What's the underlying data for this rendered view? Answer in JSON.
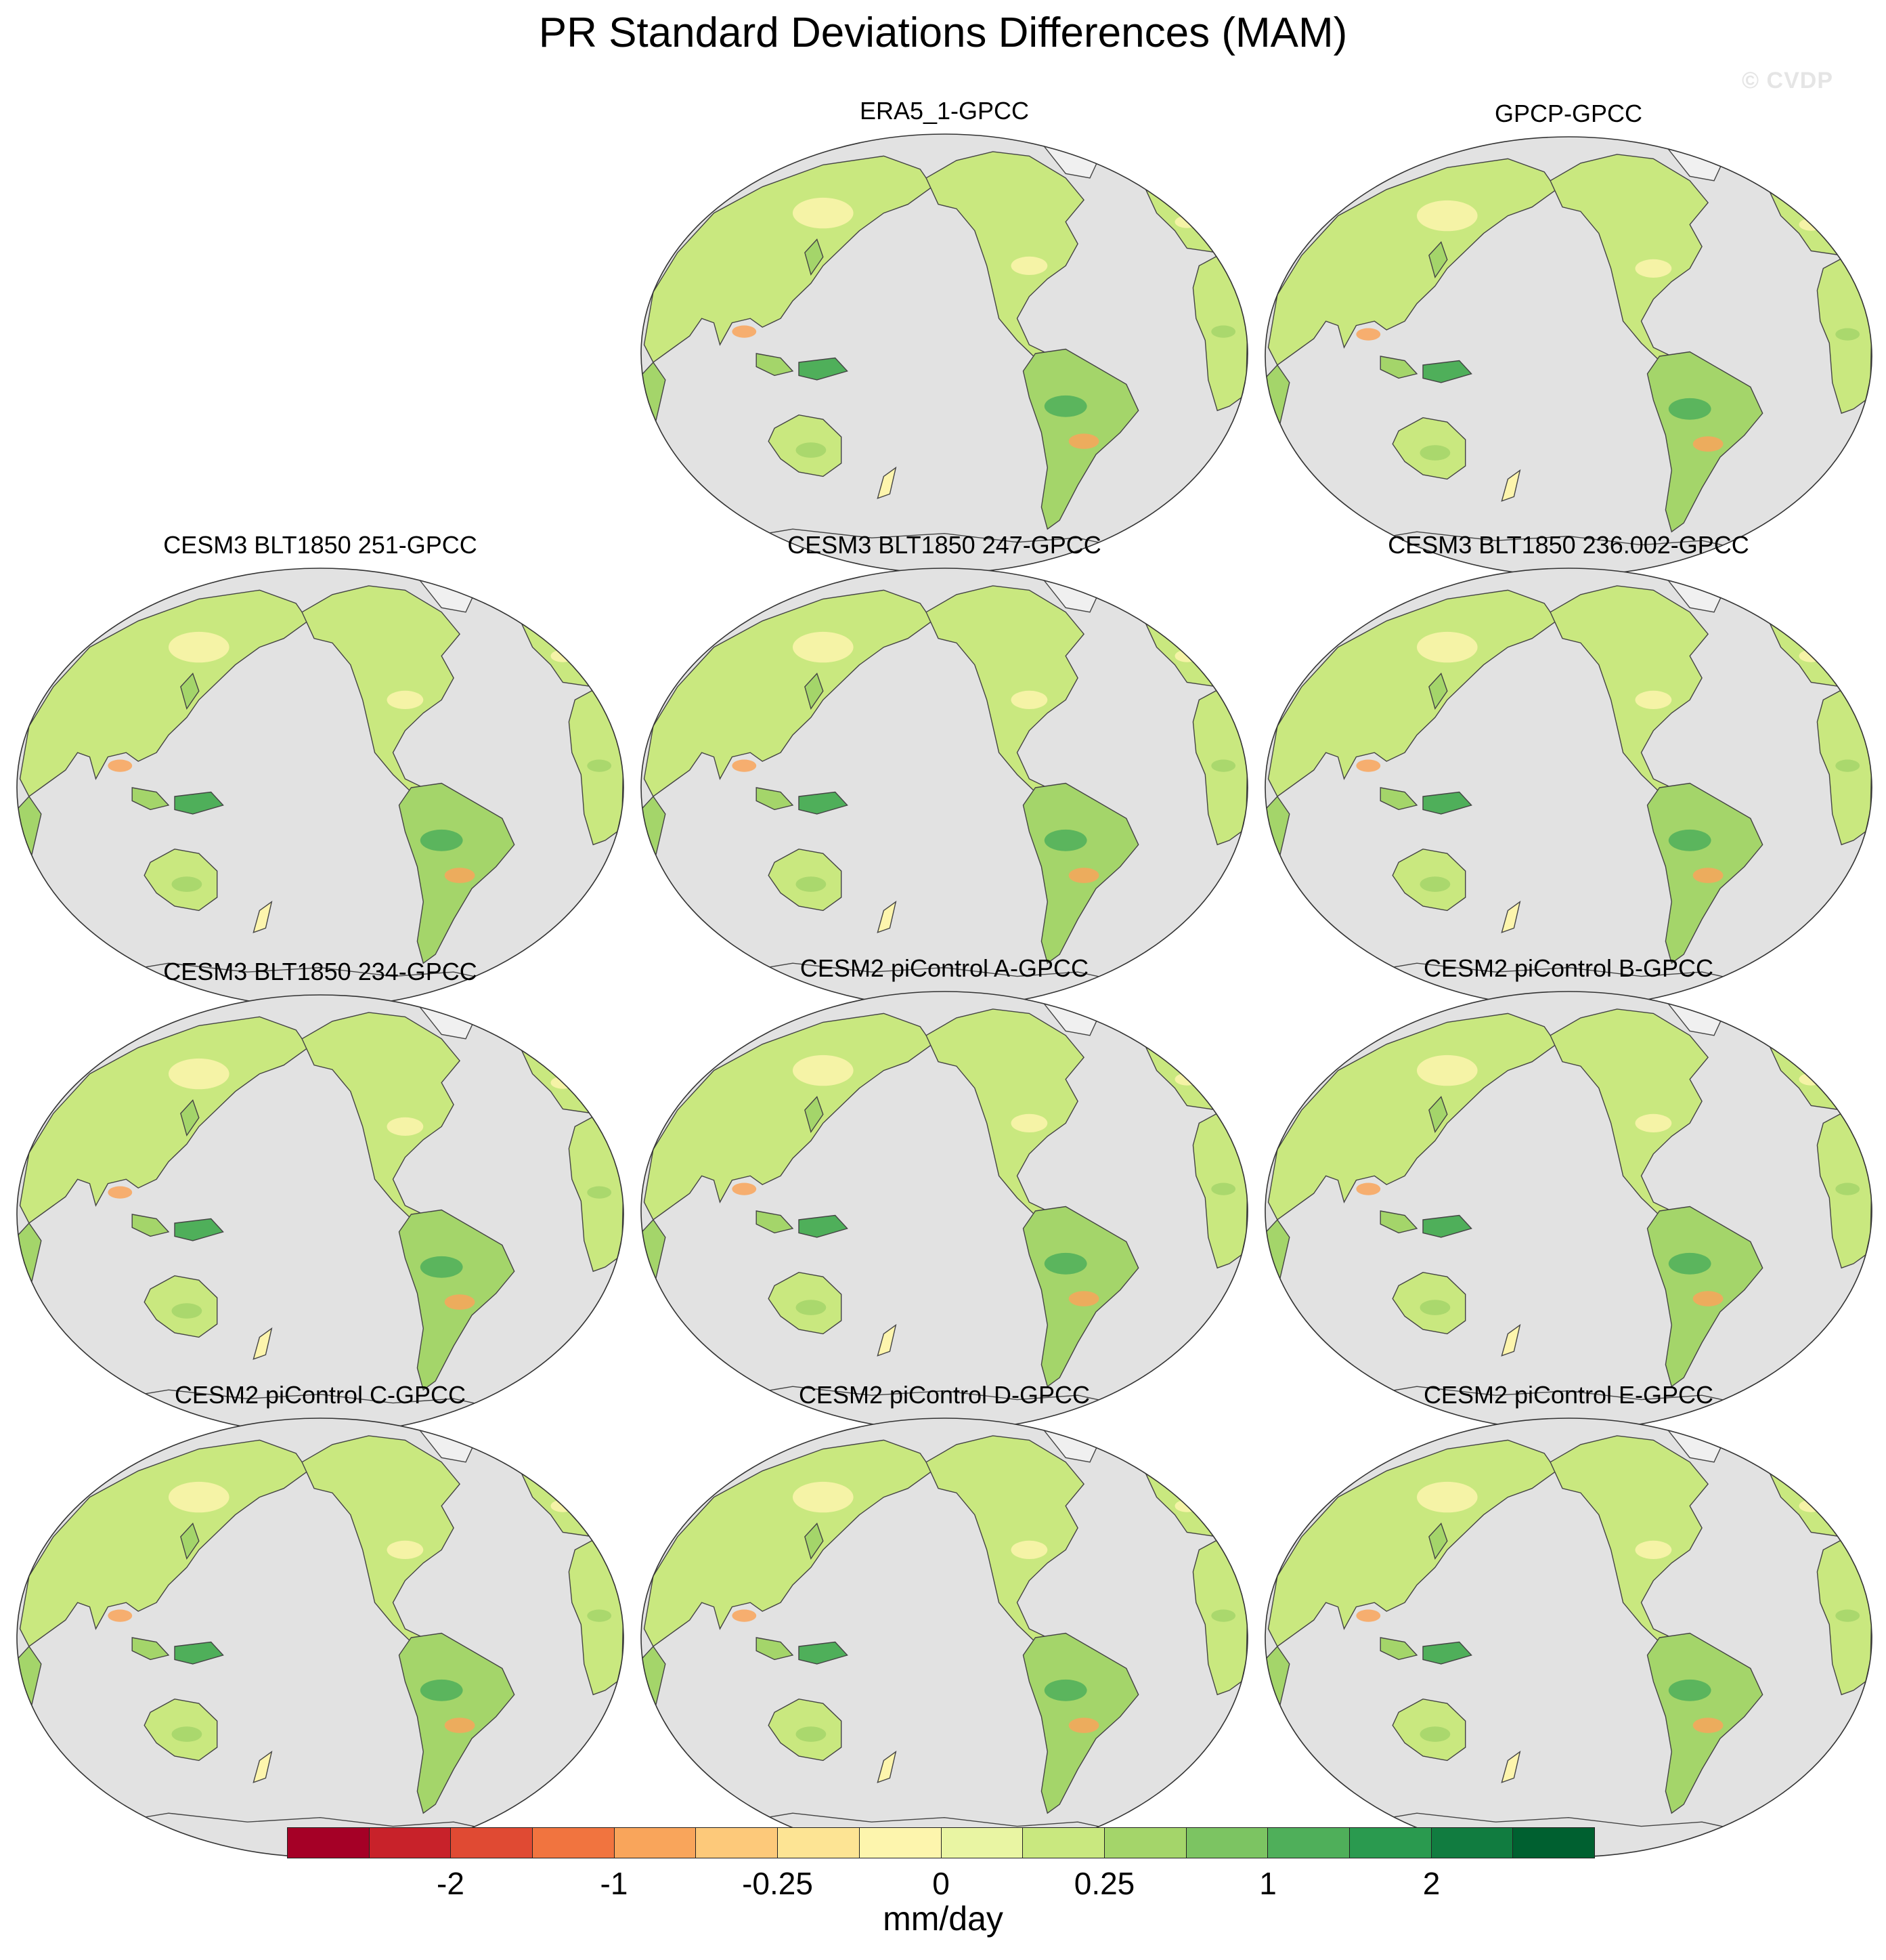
{
  "title": "PR Standard Deviations Differences (MAM)",
  "watermark": "© CVDP",
  "panels": [
    {
      "title": "ERA5_1-GPCC"
    },
    {
      "title": "GPCP-GPCC"
    },
    {
      "title": "CESM3 BLT1850 251-GPCC"
    },
    {
      "title": "CESM3 BLT1850 247-GPCC"
    },
    {
      "title": "CESM3 BLT1850 236.002-GPCC"
    },
    {
      "title": "CESM3 BLT1850 234-GPCC"
    },
    {
      "title": "CESM2 piControl A-GPCC"
    },
    {
      "title": "CESM2 piControl B-GPCC"
    },
    {
      "title": "CESM2 piControl C-GPCC"
    },
    {
      "title": "CESM2 piControl D-GPCC"
    },
    {
      "title": "CESM2 piControl E-GPCC"
    }
  ],
  "colorbar": {
    "units": "mm/day",
    "colors": [
      "#a50026",
      "#c8222a",
      "#e04a33",
      "#f1743f",
      "#f9a55b",
      "#fdc97a",
      "#fde494",
      "#fdf5ad",
      "#e9f5a3",
      "#c9e87f",
      "#a4d56a",
      "#7cc462",
      "#4faf5a",
      "#2a9a4f",
      "#117c40",
      "#006030"
    ],
    "ticks": [
      "-2",
      "-1",
      "-0.25",
      "0",
      "0.25",
      "1",
      "2"
    ]
  },
  "map_colors": {
    "ocean": "#e2e2e2",
    "outline": "#444444"
  }
}
